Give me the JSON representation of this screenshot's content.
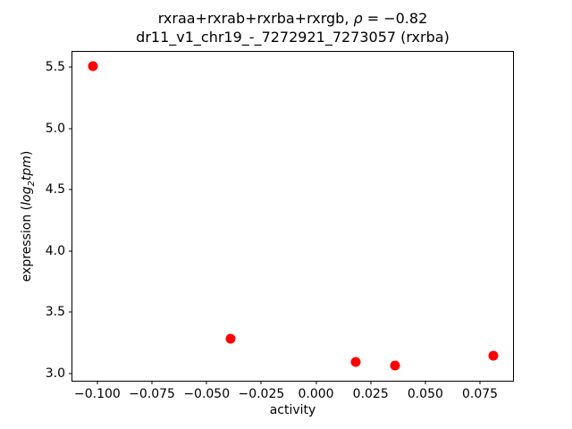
{
  "title": {
    "line1_prefix": "rxraa+rxrab+rxrba+rxrgb, ",
    "line1_rho": "ρ",
    "line1_suffix": " = −0.82",
    "line2": "dr11_v1_chr19_-_7272921_7273057 (rxrba)"
  },
  "xlabel": "activity",
  "ylabel": {
    "prefix": "expression (",
    "italic_main": "log",
    "subscript": "2",
    "italic_tail": "tpm",
    "suffix": ")"
  },
  "chart_data": {
    "type": "scatter",
    "title": "rxraa+rxrab+rxrba+rxrgb, ρ = −0.82",
    "subtitle": "dr11_v1_chr19_-_7272921_7273057 (rxrba)",
    "xlabel": "activity",
    "ylabel": "expression (log2 tpm)",
    "marker_color": "#ff0000",
    "marker_diameter_px": 11,
    "grid": false,
    "legend": null,
    "xlim": [
      -0.1114,
      0.0901
    ],
    "ylim": [
      2.939,
      5.626
    ],
    "xticks": [
      -0.1,
      -0.075,
      -0.05,
      -0.025,
      0.0,
      0.025,
      0.05,
      0.075
    ],
    "xtick_labels": [
      "−0.100",
      "−0.075",
      "−0.050",
      "−0.025",
      "0.000",
      "0.025",
      "0.050",
      "0.075"
    ],
    "yticks": [
      3.0,
      3.5,
      4.0,
      4.5,
      5.0,
      5.5
    ],
    "ytick_labels": [
      "3.0",
      "3.5",
      "4.0",
      "4.5",
      "5.0",
      "5.5"
    ],
    "points": [
      {
        "x": -0.102,
        "y": 5.51
      },
      {
        "x": -0.039,
        "y": 3.28
      },
      {
        "x": 0.018,
        "y": 3.09
      },
      {
        "x": 0.036,
        "y": 3.06
      },
      {
        "x": 0.081,
        "y": 3.14
      }
    ]
  }
}
